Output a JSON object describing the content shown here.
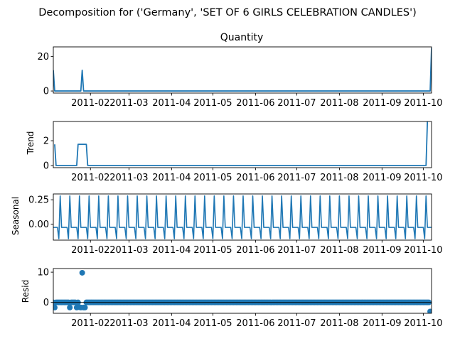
{
  "figure": {
    "suptitle": "Decomposition for ('Germany', 'SET OF 6 GIRLS CELEBRATION CANDLES')"
  },
  "style": {
    "line_color": "#1f77b4",
    "axis_color": "#000000",
    "background": "#ffffff"
  },
  "chart_data": [
    {
      "type": "line",
      "title": "Quantity",
      "ylabel": "",
      "xlim": [
        "2011-01-05",
        "2011-10-07"
      ],
      "ylim": [
        -1.2,
        25.5
      ],
      "yticks": [
        0,
        20
      ],
      "x_tick_labels": [
        "2011-02",
        "2011-03",
        "2011-04",
        "2011-05",
        "2011-06",
        "2011-07",
        "2011-08",
        "2011-09",
        "2011-10"
      ],
      "series": [
        {
          "x": [
            "2011-01-05",
            "2011-01-06",
            "2011-01-25",
            "2011-01-26",
            "2011-01-27",
            "2011-10-06",
            "2011-10-07"
          ],
          "values": [
            12,
            0,
            0,
            12,
            0,
            0,
            25
          ]
        }
      ]
    },
    {
      "type": "line",
      "title": "",
      "ylabel": "Trend",
      "xlim": [
        "2011-01-05",
        "2011-10-07"
      ],
      "ylim": [
        -0.17,
        3.55
      ],
      "yticks": [
        0,
        2
      ],
      "x_tick_labels": [
        "2011-02",
        "2011-03",
        "2011-04",
        "2011-05",
        "2011-06",
        "2011-07",
        "2011-08",
        "2011-09",
        "2011-10"
      ],
      "series": [
        {
          "x": [
            "2011-01-06",
            "2011-01-07",
            "2011-01-22",
            "2011-01-23",
            "2011-01-29",
            "2011-01-30",
            "2011-10-03",
            "2011-10-04"
          ],
          "values": [
            1.71,
            0,
            0,
            1.71,
            1.71,
            0,
            0,
            3.57
          ]
        }
      ]
    },
    {
      "type": "line",
      "title": "",
      "ylabel": "Seasonal",
      "xlim": [
        "2011-01-05",
        "2011-10-07"
      ],
      "ylim": [
        -0.165,
        0.31
      ],
      "yticks": [
        -0.0,
        0.25
      ],
      "ytick_labels": [
        "0.00",
        "0.25"
      ],
      "x_tick_labels": [
        "2011-02",
        "2011-03",
        "2011-04",
        "2011-05",
        "2011-06",
        "2011-07",
        "2011-08",
        "2011-09",
        "2011-10"
      ],
      "period_days": 7,
      "weekly_pattern": [
        -0.034,
        -0.034,
        -0.034,
        -0.034,
        -0.15,
        0.29,
        -0.034
      ],
      "series": [
        {
          "x_start": "2011-01-05",
          "x_end": "2011-10-07"
        }
      ]
    },
    {
      "type": "scatter",
      "title": "",
      "ylabel": "Resid",
      "xlim": [
        "2011-01-05",
        "2011-10-07"
      ],
      "ylim": [
        -3.6,
        11.2
      ],
      "yticks": [
        0,
        10
      ],
      "x_tick_labels": [
        "2011-02",
        "2011-03",
        "2011-04",
        "2011-05",
        "2011-06",
        "2011-07",
        "2011-08",
        "2011-09",
        "2011-10"
      ],
      "zero_line": 0,
      "baseline_range": [
        "2011-01-05",
        "2011-10-06"
      ],
      "baseline_value": 0,
      "series": [
        {
          "x": [
            "2011-01-06",
            "2011-01-17",
            "2011-01-22",
            "2011-01-24",
            "2011-01-25",
            "2011-01-26",
            "2011-01-27",
            "2011-01-28",
            "2011-10-06"
          ],
          "values": [
            -1.7,
            -1.7,
            -1.7,
            -1.6,
            -1.7,
            9.8,
            -1.7,
            -1.7,
            -3.0
          ]
        }
      ]
    }
  ]
}
